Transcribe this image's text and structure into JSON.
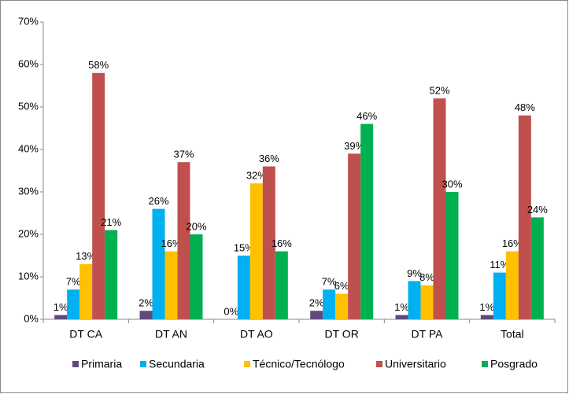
{
  "chart_data": {
    "type": "bar",
    "categories": [
      "DT CA",
      "DT AN",
      "DT AO",
      "DT OR",
      "DT PA",
      "Total"
    ],
    "series": [
      {
        "name": "Primaria",
        "color": "#604a7b",
        "values": [
          1,
          2,
          0,
          2,
          1,
          1
        ],
        "value_labels": [
          "1%",
          "2%",
          "0%",
          "2%",
          "1%",
          "1%"
        ]
      },
      {
        "name": "Secundaria",
        "color": "#00b0f0",
        "values": [
          7,
          26,
          15,
          7,
          9,
          11
        ],
        "value_labels": [
          "7%",
          "26%",
          "15%",
          "7%",
          "9%",
          "11%"
        ]
      },
      {
        "name": "Técnico/Tecnólogo",
        "color": "#ffc000",
        "values": [
          13,
          16,
          32,
          6,
          8,
          16
        ],
        "value_labels": [
          "13%",
          "16%",
          "32%",
          "6%",
          "8%",
          "16%"
        ]
      },
      {
        "name": "Universitario",
        "color": "#c0504d",
        "values": [
          58,
          37,
          36,
          39,
          52,
          48
        ],
        "value_labels": [
          "58%",
          "37%",
          "36%",
          "39%",
          "52%",
          "48%"
        ]
      },
      {
        "name": "Posgrado",
        "color": "#00b050",
        "values": [
          21,
          20,
          16,
          46,
          30,
          24
        ],
        "value_labels": [
          "21%",
          "20%",
          "16%",
          "46%",
          "30%",
          "24%"
        ]
      }
    ],
    "ylim": [
      0,
      70
    ],
    "yticks": [
      {
        "value": 0,
        "label": "0%"
      },
      {
        "value": 10,
        "label": "10%"
      },
      {
        "value": 20,
        "label": "20%"
      },
      {
        "value": 30,
        "label": "30%"
      },
      {
        "value": 40,
        "label": "40%"
      },
      {
        "value": 50,
        "label": "50%"
      },
      {
        "value": 60,
        "label": "60%"
      },
      {
        "value": 70,
        "label": "70%"
      }
    ],
    "grid": false,
    "legend": "bottom"
  }
}
